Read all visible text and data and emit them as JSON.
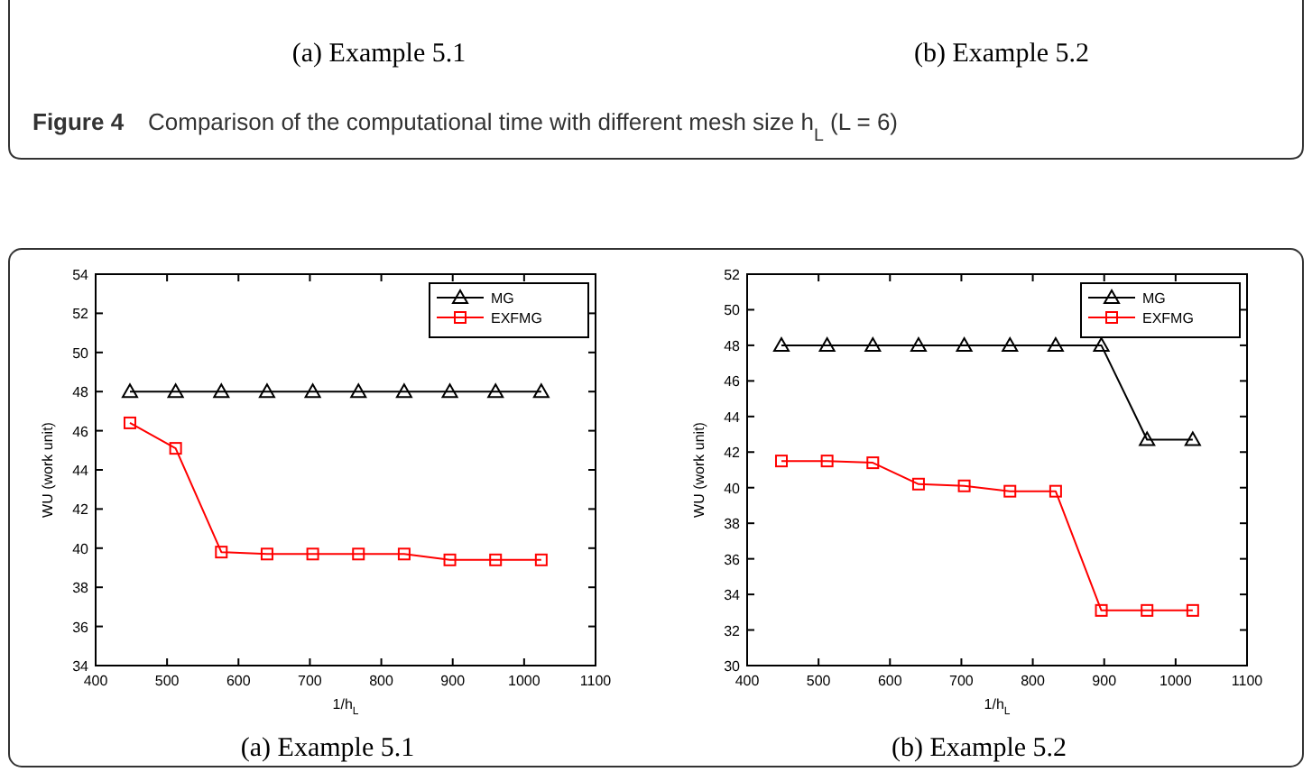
{
  "chart_data": [
    {
      "type": "line",
      "title": "(a) Example 5.1",
      "xlabel": "1/h$_{L}$",
      "ylabel": "WU (work unit)",
      "annotations": [
        "(a) Example 5.1",
        "Figure 4",
        "Comparison of the computational time with different mesh size h$_{L}$ (L = 6)"
      ],
      "x": [
        448,
        512,
        576,
        640,
        704,
        768,
        832,
        896,
        960,
        1024
      ],
      "series": [
        {
          "name": "MG",
          "color": "#000000",
          "marker": "triangle",
          "values": [
            48,
            48,
            48,
            48,
            48,
            48,
            48,
            48,
            48,
            48
          ]
        },
        {
          "name": "EXFMG",
          "color": "#ff0000",
          "marker": "square",
          "values": [
            46.4,
            45.1,
            39.8,
            39.7,
            39.7,
            39.7,
            39.7,
            39.4,
            39.4,
            39.4
          ]
        }
      ],
      "xlim": [
        400,
        1100
      ],
      "xticks": [
        400,
        500,
        600,
        700,
        800,
        900,
        1000,
        1100
      ],
      "ylim": [
        34,
        54
      ],
      "yticks": [
        34,
        36,
        38,
        40,
        42,
        44,
        46,
        48,
        50,
        52,
        54
      ],
      "grid": false,
      "legend": "top right",
      "line_style": "solid"
    },
    {
      "type": "line",
      "title": "(b) Example 5.2",
      "xlabel": "1/h$_{L}$",
      "ylabel": "WU (work unit)",
      "annotations": [
        "(b) Example 5.2"
      ],
      "x": [
        448,
        512,
        576,
        640,
        704,
        768,
        832,
        896,
        960,
        1024
      ],
      "series": [
        {
          "name": "MG",
          "color": "#000000",
          "marker": "triangle",
          "values": [
            48,
            48,
            48,
            48,
            48,
            48,
            48,
            48,
            42.7,
            42.7
          ]
        },
        {
          "name": "EXFMG",
          "color": "#ff0000",
          "marker": "square",
          "values": [
            41.5,
            41.5,
            41.4,
            40.2,
            40.1,
            39.8,
            39.8,
            33.1,
            33.1,
            33.1
          ]
        }
      ],
      "xlim": [
        400,
        1100
      ],
      "xticks": [
        400,
        500,
        600,
        700,
        800,
        900,
        1000,
        1100
      ],
      "ylim": [
        30,
        52
      ],
      "yticks": [
        30,
        32,
        34,
        36,
        38,
        40,
        42,
        44,
        46,
        48,
        50,
        52
      ],
      "grid": false,
      "legend": "top right",
      "line_style": "solid"
    }
  ]
}
